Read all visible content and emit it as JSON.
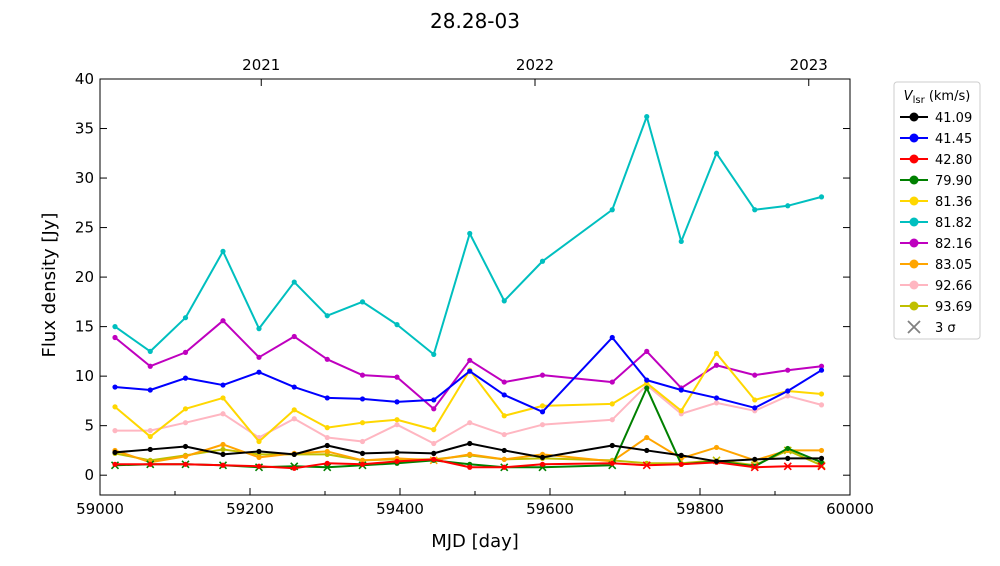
{
  "chart_data": {
    "type": "line",
    "title": "28.28-03",
    "xlabel": "MJD [day]",
    "ylabel": "Flux density [Jy]",
    "xlim": [
      59000,
      60000
    ],
    "ylim": [
      -2,
      40
    ],
    "x_ticks": [
      59000,
      59200,
      59400,
      59600,
      59800,
      60000
    ],
    "y_ticks": [
      0,
      5,
      10,
      15,
      20,
      25,
      30,
      35,
      40
    ],
    "top_axis": {
      "labels": [
        {
          "mjd": 59215,
          "label": "2021"
        },
        {
          "mjd": 59580,
          "label": "2022"
        },
        {
          "mjd": 59945,
          "label": "2023"
        }
      ]
    },
    "grid": false,
    "legend": {
      "placement": "outside-right",
      "title": "V",
      "title_sub": "lsr",
      "title_unit": " (km/s)",
      "entries": [
        {
          "label": "41.09",
          "color": "#000000",
          "marker": "dot"
        },
        {
          "label": "41.45",
          "color": "#0000ff",
          "marker": "dot"
        },
        {
          "label": "42.80",
          "color": "#ff0000",
          "marker": "dot"
        },
        {
          "label": "79.90",
          "color": "#008000",
          "marker": "dot"
        },
        {
          "label": "81.36",
          "color": "#ffd700",
          "marker": "dot"
        },
        {
          "label": "81.82",
          "color": "#00bfbf",
          "marker": "dot"
        },
        {
          "label": "82.16",
          "color": "#bf00bf",
          "marker": "dot"
        },
        {
          "label": "83.05",
          "color": "#ffa500",
          "marker": "dot"
        },
        {
          "label": "92.66",
          "color": "#ffb6c1",
          "marker": "dot"
        },
        {
          "label": "93.69",
          "color": "#bfbf00",
          "marker": "dot"
        },
        {
          "label": "3 σ",
          "color": "#808080",
          "marker": "x"
        }
      ]
    },
    "x": [
      59020,
      59067,
      59114,
      59164,
      59212,
      59259,
      59303,
      59350,
      59396,
      59445,
      59493,
      59539,
      59590,
      59683,
      59729,
      59775,
      59822,
      59873,
      59917,
      59962
    ],
    "series": [
      {
        "name": "93.69",
        "color": "#bfbf00",
        "values": [
          2.2,
          1.5,
          2.0,
          2.6,
          2.1,
          2.1,
          2.1,
          1.5,
          1.6,
          1.6,
          2.0,
          1.6,
          1.7,
          1.5,
          1.2,
          1.2,
          1.5,
          1.0,
          2.5,
          1.0
        ],
        "upper_limit_idx": [
          16,
          17,
          18,
          19
        ]
      },
      {
        "name": "92.66",
        "color": "#ffb6c1",
        "values": [
          4.5,
          4.5,
          5.3,
          6.2,
          3.8,
          5.7,
          3.8,
          3.4,
          5.1,
          3.2,
          5.3,
          4.1,
          5.1,
          5.6,
          9.1,
          6.2,
          7.3,
          6.5,
          8.0,
          7.1
        ],
        "upper_limit_idx": []
      },
      {
        "name": "83.05",
        "color": "#ffa500",
        "values": [
          2.5,
          1.3,
          1.9,
          3.1,
          1.8,
          2.2,
          2.4,
          1.5,
          1.7,
          1.5,
          2.1,
          1.6,
          2.1,
          1.4,
          3.8,
          1.7,
          2.8,
          1.5,
          2.5,
          2.5
        ],
        "upper_limit_idx": [
          9
        ]
      },
      {
        "name": "82.16",
        "color": "#bf00bf",
        "values": [
          13.9,
          11.0,
          12.4,
          15.6,
          11.9,
          14.0,
          11.7,
          10.1,
          9.9,
          6.7,
          11.6,
          9.4,
          10.1,
          9.4,
          12.5,
          8.8,
          11.1,
          10.1,
          10.6,
          11.0
        ],
        "upper_limit_idx": []
      },
      {
        "name": "81.82",
        "color": "#00bfbf",
        "values": [
          15.0,
          12.5,
          15.9,
          22.6,
          14.8,
          19.5,
          16.1,
          17.5,
          15.2,
          12.2,
          24.4,
          17.6,
          21.6,
          26.8,
          36.2,
          23.6,
          32.5,
          26.8,
          27.2,
          28.1
        ],
        "upper_limit_idx": []
      },
      {
        "name": "81.36",
        "color": "#ffd700",
        "values": [
          6.9,
          3.9,
          6.7,
          7.8,
          3.4,
          6.6,
          4.8,
          5.3,
          5.6,
          4.6,
          10.6,
          6.0,
          7.0,
          7.2,
          9.3,
          6.5,
          12.3,
          7.6,
          8.5,
          8.2
        ],
        "upper_limit_idx": []
      },
      {
        "name": "79.90",
        "color": "#008000",
        "values": [
          1.0,
          1.1,
          1.1,
          1.0,
          0.8,
          0.9,
          0.8,
          1.0,
          1.2,
          1.5,
          1.1,
          0.8,
          0.8,
          1.0,
          8.8,
          1.1,
          1.4,
          0.9,
          2.7,
          1.3
        ],
        "upper_limit_idx": [
          0,
          1,
          2,
          3,
          4,
          5,
          6,
          7,
          11,
          12,
          13
        ]
      },
      {
        "name": "42.80",
        "color": "#ff0000",
        "values": [
          1.1,
          1.1,
          1.1,
          1.0,
          0.9,
          0.7,
          1.2,
          1.1,
          1.4,
          1.6,
          0.8,
          0.8,
          1.1,
          1.2,
          1.0,
          1.1,
          1.3,
          0.8,
          0.9,
          0.9
        ],
        "upper_limit_idx": [
          14,
          17,
          18,
          19
        ]
      },
      {
        "name": "41.45",
        "color": "#0000ff",
        "values": [
          8.9,
          8.6,
          9.8,
          9.1,
          10.4,
          8.9,
          7.8,
          7.7,
          7.4,
          7.6,
          10.5,
          8.1,
          6.4,
          13.9,
          9.6,
          8.6,
          7.8,
          6.8,
          8.5,
          10.6
        ],
        "upper_limit_idx": []
      },
      {
        "name": "41.09",
        "color": "#000000",
        "values": [
          2.3,
          2.6,
          2.9,
          2.1,
          2.4,
          2.1,
          3.0,
          2.2,
          2.3,
          2.2,
          3.2,
          2.5,
          1.8,
          3.0,
          2.5,
          2.0,
          1.4,
          1.6,
          1.7,
          1.7
        ],
        "upper_limit_idx": []
      }
    ]
  }
}
